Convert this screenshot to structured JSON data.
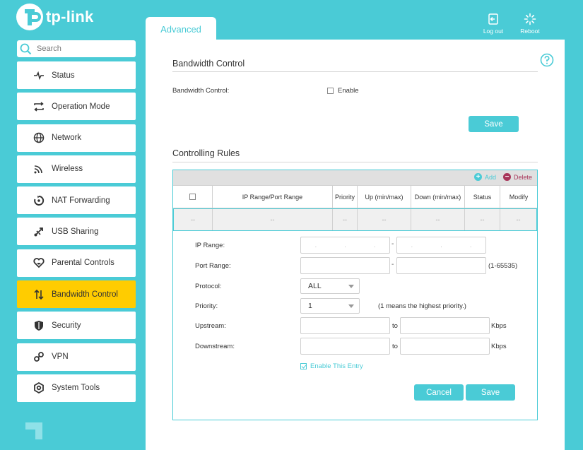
{
  "brand": {
    "logo_text": "tp-link"
  },
  "header": {
    "tab_label": "Advanced",
    "logout_label": "Log out",
    "reboot_label": "Reboot"
  },
  "sidebar": {
    "search_placeholder": "Search",
    "items": [
      {
        "label": "Status",
        "icon": "pulse-icon"
      },
      {
        "label": "Operation Mode",
        "icon": "swap-arrows-icon"
      },
      {
        "label": "Network",
        "icon": "globe-icon"
      },
      {
        "label": "Wireless",
        "icon": "wifi-icon"
      },
      {
        "label": "NAT Forwarding",
        "icon": "nat-icon"
      },
      {
        "label": "USB Sharing",
        "icon": "usb-icon"
      },
      {
        "label": "Parental Controls",
        "icon": "heart-icon"
      },
      {
        "label": "Bandwidth Control",
        "icon": "up-down-arrows-icon",
        "active": true
      },
      {
        "label": "Security",
        "icon": "shield-icon"
      },
      {
        "label": "VPN",
        "icon": "key-icon"
      },
      {
        "label": "System Tools",
        "icon": "gear-icon"
      }
    ]
  },
  "bandwidth": {
    "title": "Bandwidth Control",
    "control_label": "Bandwidth Control:",
    "enable_label": "Enable",
    "save_label": "Save"
  },
  "rules": {
    "title": "Controlling Rules",
    "add_label": "Add",
    "delete_label": "Delete",
    "columns": [
      "IP Range/Port Range",
      "Priority",
      "Up (min/max)",
      "Down (min/max)",
      "Status",
      "Modify"
    ],
    "row": [
      "--",
      "--",
      "--",
      "--",
      "--",
      "--",
      "--"
    ]
  },
  "form": {
    "ip_range_label": "IP Range:",
    "port_range_label": "Port Range:",
    "port_hint": "(1-65535)",
    "protocol_label": "Protocol:",
    "protocol_value": "ALL",
    "priority_label": "Priority:",
    "priority_value": "1",
    "priority_hint": "(1 means the highest priority.)",
    "upstream_label": "Upstream:",
    "downstream_label": "Downstream:",
    "to_label": "to",
    "unit": "Kbps",
    "enable_entry_label": "Enable This Entry",
    "cancel_label": "Cancel",
    "save_label": "Save",
    "range_dash": "-"
  },
  "colors": {
    "accent": "#4acbd6",
    "active": "#ffcc00",
    "delete": "#a8365a"
  }
}
